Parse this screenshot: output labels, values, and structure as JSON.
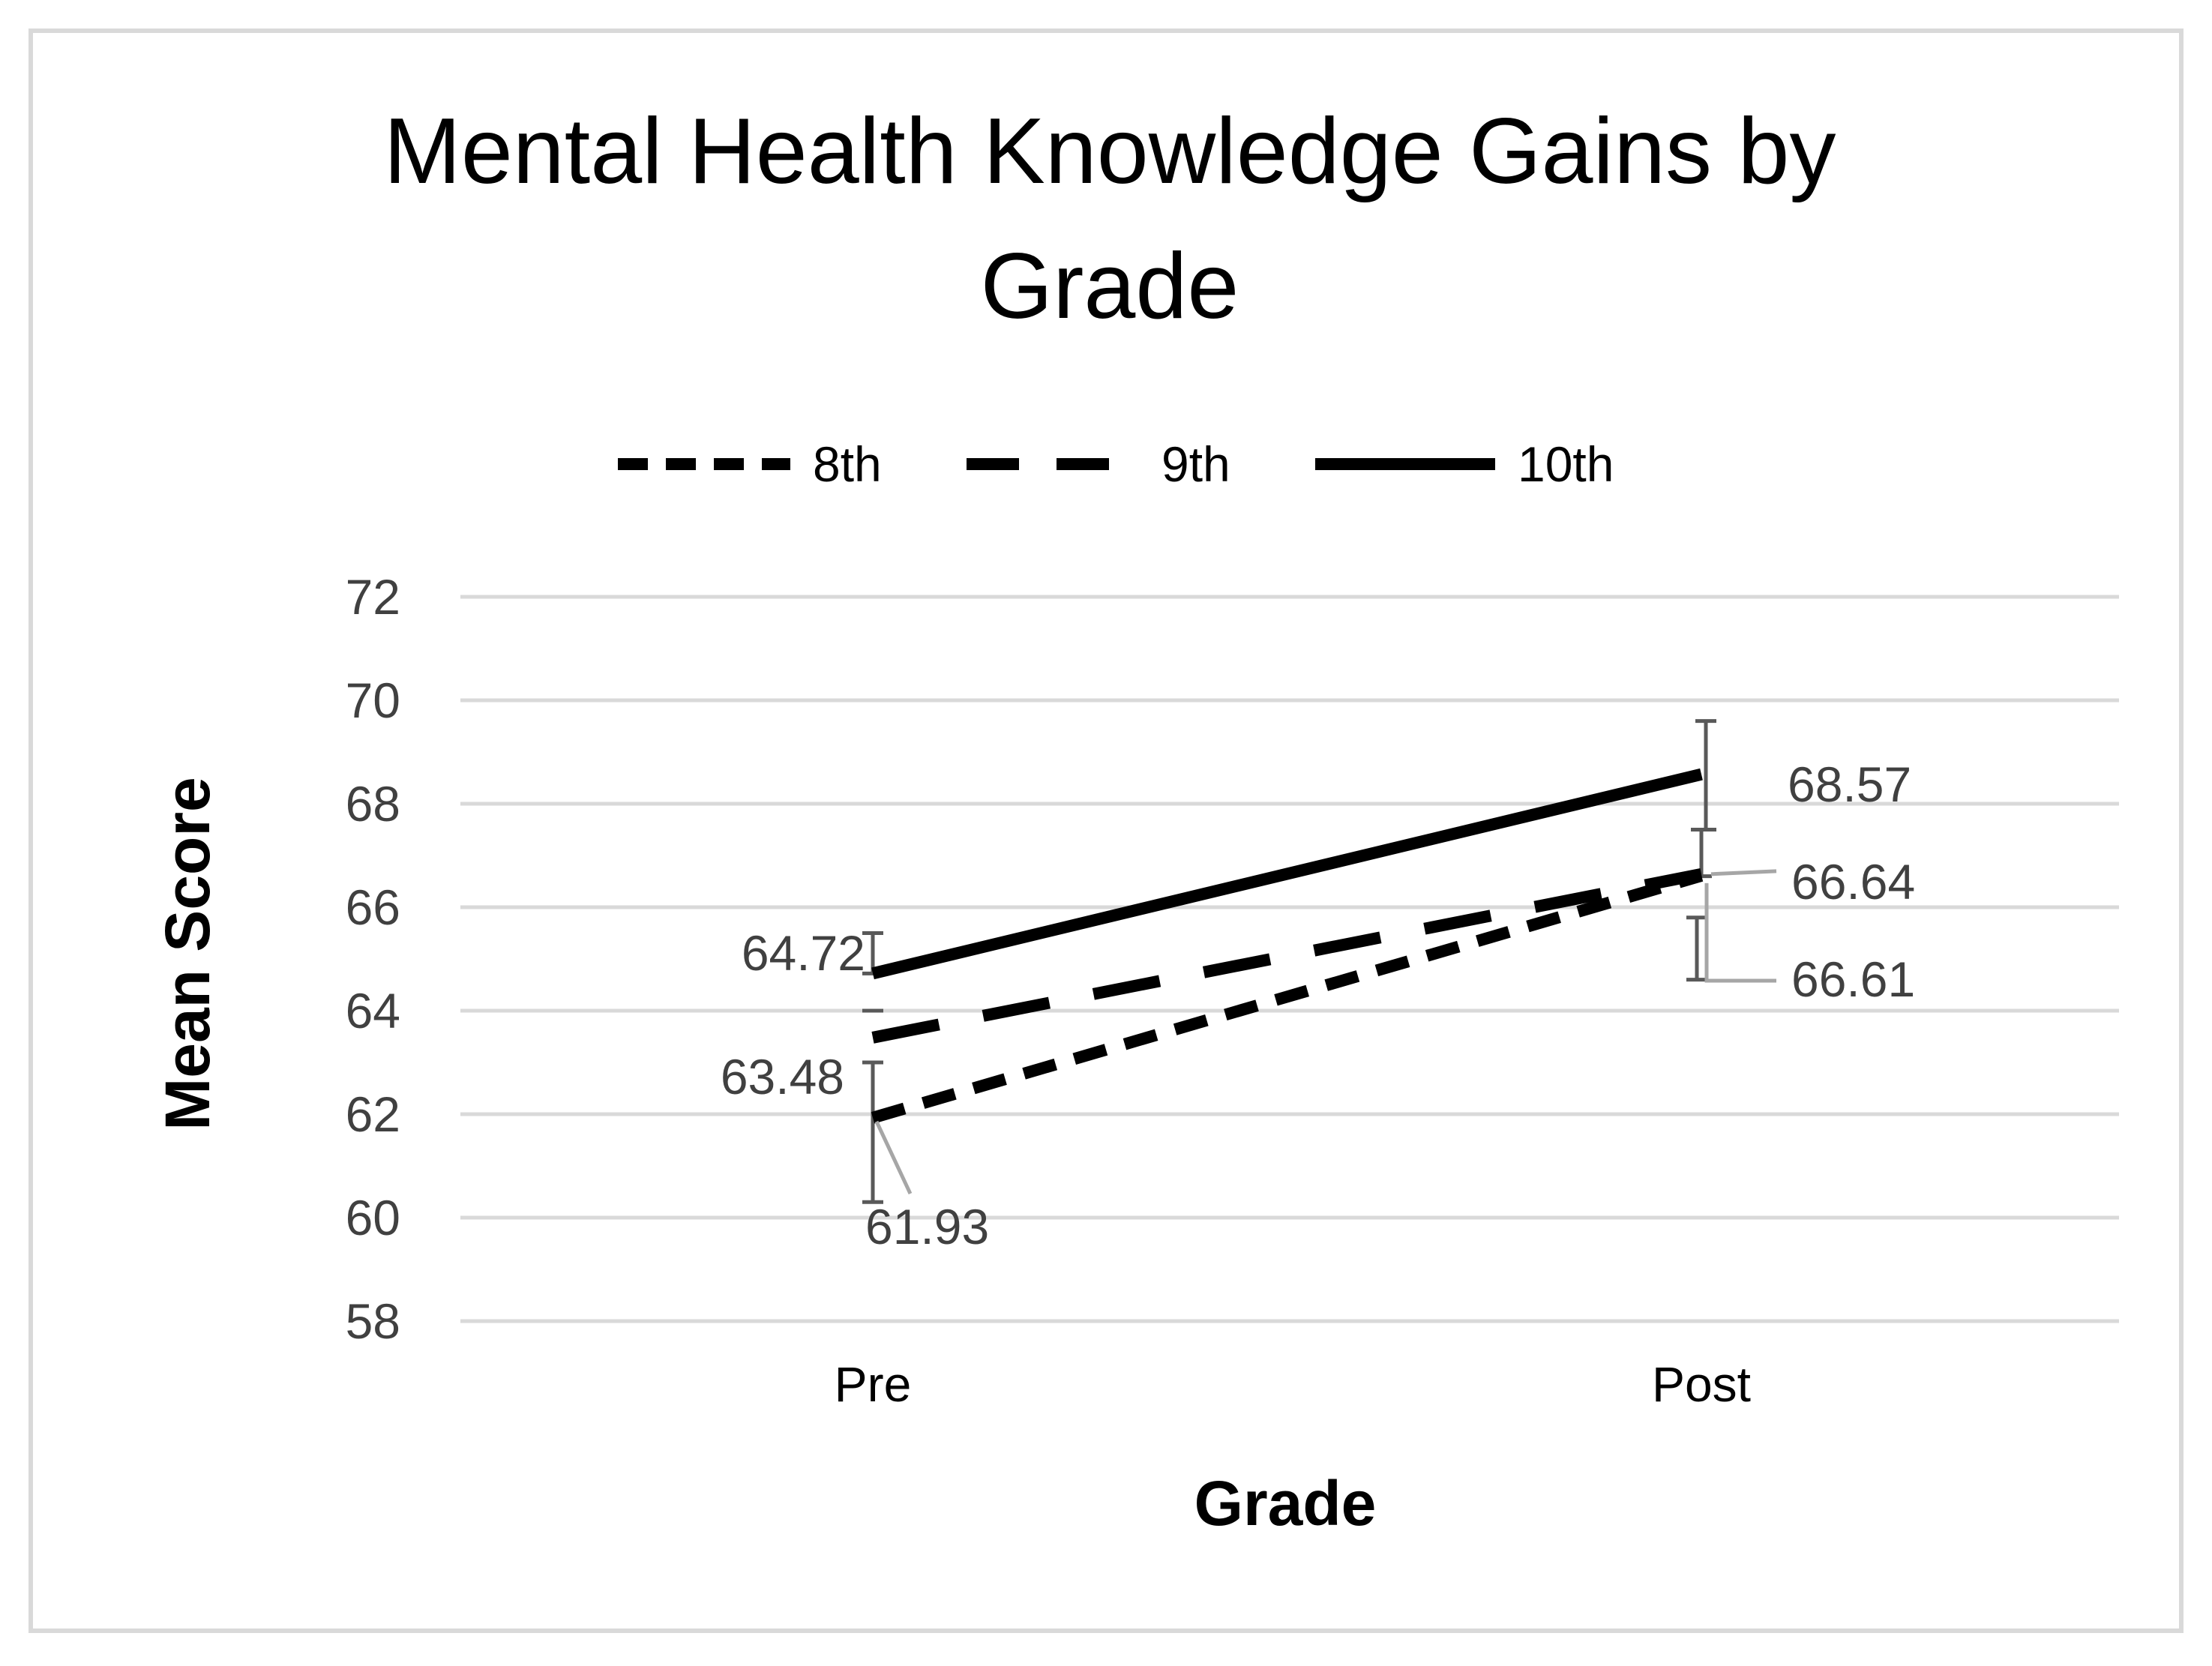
{
  "chart_data": {
    "type": "line",
    "title": "Mental Health Knowledge Gains by Grade",
    "title_lines": [
      "Mental Health Knowledge Gains by",
      "Grade"
    ],
    "xlabel": "Grade",
    "ylabel": "Mean Score",
    "categories": [
      "Pre",
      "Post"
    ],
    "ylim": [
      58,
      72
    ],
    "y_ticks": [
      58,
      60,
      62,
      64,
      66,
      68,
      70,
      72
    ],
    "grid": true,
    "legend_position": "top",
    "series": [
      {
        "name": "8th",
        "values": [
          61.93,
          66.61
        ],
        "labels": [
          "61.93",
          "66.61"
        ],
        "line_style": "dashed",
        "color": "#000000",
        "error_bars": [
          [
            60.3,
            63.0
          ],
          [
            64.6,
            65.8
          ]
        ]
      },
      {
        "name": "9th",
        "values": [
          63.48,
          66.64
        ],
        "labels": [
          "63.48",
          "66.64"
        ],
        "line_style": "long-dashed",
        "color": "#000000",
        "error_bars": [
          [
            64.0,
            64.0
          ],
          [
            66.6,
            67.5
          ]
        ]
      },
      {
        "name": "10th",
        "values": [
          64.72,
          68.57
        ],
        "labels": [
          "64.72",
          "68.57"
        ],
        "line_style": "solid",
        "color": "#000000",
        "error_bars": [
          [
            64.72,
            65.5
          ],
          [
            67.5,
            69.6
          ]
        ]
      }
    ],
    "colors": {
      "grid": "#d9d9d9",
      "error_bar": "#595959",
      "leader_line": "#a6a6a6",
      "border": "#d9d9d9"
    }
  }
}
